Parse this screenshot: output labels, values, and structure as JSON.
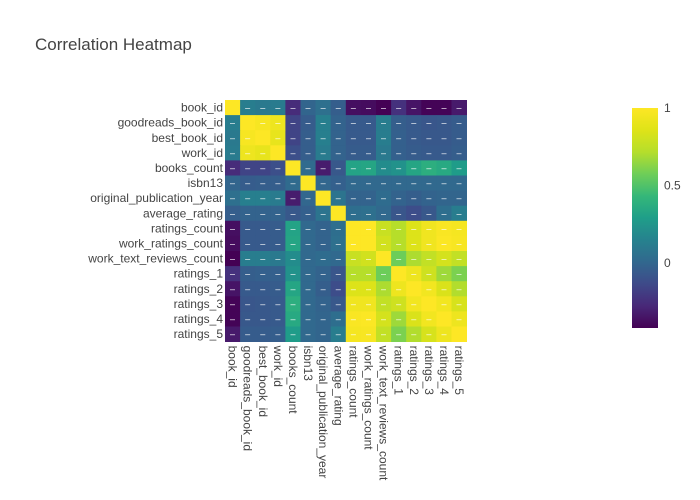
{
  "chart_data": {
    "type": "heatmap",
    "title": "Correlation Heatmap",
    "labels": [
      "book_id",
      "goodreads_book_id",
      "best_book_id",
      "work_id",
      "books_count",
      "isbn13",
      "original_publication_year",
      "average_rating",
      "ratings_count",
      "work_ratings_count",
      "work_text_reviews_count",
      "ratings_1",
      "ratings_2",
      "ratings_3",
      "ratings_4",
      "ratings_5"
    ],
    "matrix": [
      [
        1.0,
        0.12,
        0.1,
        0.11,
        -0.26,
        -0.01,
        0.05,
        -0.04,
        -0.37,
        -0.38,
        -0.42,
        -0.24,
        -0.35,
        -0.41,
        -0.41,
        -0.33
      ],
      [
        0.12,
        1.0,
        0.97,
        0.93,
        -0.16,
        -0.05,
        0.13,
        -0.02,
        -0.06,
        -0.06,
        0.12,
        -0.04,
        -0.06,
        -0.08,
        -0.07,
        -0.05
      ],
      [
        0.1,
        0.97,
        1.0,
        0.9,
        -0.16,
        -0.04,
        0.13,
        -0.02,
        -0.06,
        -0.06,
        0.12,
        -0.03,
        -0.06,
        -0.07,
        -0.07,
        -0.05
      ],
      [
        0.11,
        0.93,
        0.9,
        1.0,
        -0.11,
        -0.04,
        0.11,
        -0.02,
        -0.05,
        -0.05,
        0.1,
        -0.03,
        -0.05,
        -0.06,
        -0.06,
        -0.04
      ],
      [
        -0.26,
        -0.16,
        -0.16,
        -0.11,
        1.0,
        0.02,
        -0.32,
        -0.07,
        0.32,
        0.33,
        0.2,
        0.23,
        0.33,
        0.38,
        0.35,
        0.28
      ],
      [
        -0.01,
        -0.05,
        -0.04,
        -0.04,
        0.02,
        1.0,
        -0.0,
        -0.03,
        0.01,
        0.01,
        0.01,
        0.01,
        0.01,
        0.01,
        0.01,
        0.01
      ],
      [
        0.05,
        0.13,
        0.13,
        0.11,
        -0.32,
        -0.0,
        1.0,
        0.07,
        -0.02,
        -0.02,
        0.03,
        -0.02,
        -0.04,
        -0.02,
        -0.01,
        -0.01
      ],
      [
        -0.04,
        -0.02,
        -0.02,
        -0.02,
        -0.07,
        -0.03,
        0.07,
        1.0,
        0.04,
        0.05,
        0.01,
        -0.08,
        -0.12,
        -0.07,
        0.04,
        0.12
      ],
      [
        -0.37,
        -0.06,
        -0.06,
        -0.05,
        0.32,
        0.01,
        -0.02,
        0.04,
        1.0,
        1.0,
        0.78,
        0.72,
        0.85,
        0.94,
        0.98,
        0.96
      ],
      [
        -0.38,
        -0.06,
        -0.06,
        -0.05,
        0.33,
        0.01,
        -0.02,
        0.05,
        1.0,
        1.0,
        0.81,
        0.72,
        0.85,
        0.94,
        0.99,
        0.97
      ],
      [
        -0.42,
        0.12,
        0.12,
        0.1,
        0.2,
        0.01,
        0.03,
        0.01,
        0.78,
        0.81,
        1.0,
        0.57,
        0.7,
        0.76,
        0.82,
        0.76
      ],
      [
        -0.24,
        -0.04,
        -0.03,
        -0.03,
        0.23,
        0.01,
        -0.02,
        -0.08,
        0.72,
        0.72,
        0.57,
        1.0,
        0.93,
        0.8,
        0.67,
        0.6
      ],
      [
        -0.35,
        -0.06,
        -0.06,
        -0.05,
        0.33,
        0.01,
        -0.04,
        -0.12,
        0.85,
        0.85,
        0.7,
        0.93,
        1.0,
        0.95,
        0.84,
        0.71
      ],
      [
        -0.41,
        -0.08,
        -0.07,
        -0.06,
        0.38,
        0.01,
        -0.02,
        -0.07,
        0.94,
        0.94,
        0.76,
        0.8,
        0.95,
        1.0,
        0.95,
        0.83
      ],
      [
        -0.41,
        -0.07,
        -0.07,
        -0.06,
        0.35,
        0.01,
        -0.01,
        0.04,
        0.98,
        0.99,
        0.82,
        0.67,
        0.84,
        0.95,
        1.0,
        0.93
      ],
      [
        -0.33,
        -0.05,
        -0.05,
        -0.04,
        0.28,
        0.01,
        -0.01,
        0.12,
        0.96,
        0.97,
        0.76,
        0.6,
        0.71,
        0.83,
        0.93,
        1.0
      ]
    ],
    "zmin": -0.42,
    "zmax": 1.0,
    "colorscale": "viridis",
    "colorbar_ticks": [
      0,
      0.5,
      1
    ],
    "colorbar_tick_labels": [
      "0",
      "0.5",
      "1"
    ],
    "cell_text": "–",
    "legend": "colorbar-right"
  }
}
